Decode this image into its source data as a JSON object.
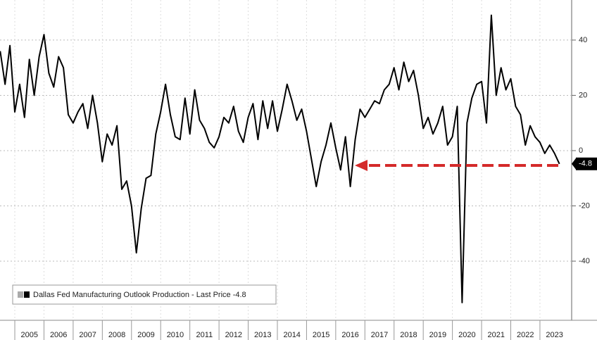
{
  "chart_data": {
    "type": "line",
    "categories": [
      null,
      null,
      null,
      "2005",
      null,
      null,
      null,
      null,
      null,
      "2006",
      null,
      null,
      null,
      null,
      null,
      "2007",
      null,
      null,
      null,
      null,
      null,
      "2008",
      null,
      null,
      null,
      null,
      null,
      "2009",
      null,
      null,
      null,
      null,
      null,
      "2010",
      null,
      null,
      null,
      null,
      null,
      "2011",
      null,
      null,
      null,
      null,
      null,
      "2012",
      null,
      null,
      null,
      null,
      null,
      "2013",
      null,
      null,
      null,
      null,
      null,
      "2014",
      null,
      null,
      null,
      null,
      null,
      "2015",
      null,
      null,
      null,
      null,
      null,
      "2016",
      null,
      null,
      null,
      null,
      null,
      "2017",
      null,
      null,
      null,
      null,
      null,
      "2018",
      null,
      null,
      null,
      null,
      null,
      "2019",
      null,
      null,
      null,
      null,
      null,
      "2020",
      null,
      null,
      null,
      null,
      null,
      "2021",
      null,
      null,
      null,
      null,
      null,
      "2022",
      null,
      null,
      null,
      null,
      null,
      "2023",
      null,
      null,
      null,
      null
    ],
    "series": [
      {
        "name": "Dallas Fed Manufacturing Outlook Production - Last Price -4.8",
        "color": "#000000",
        "values": [
          36,
          24,
          38,
          14,
          24,
          12,
          33,
          20,
          34,
          42,
          28,
          23,
          34,
          30,
          13,
          10,
          14,
          17,
          8,
          20,
          10,
          -4,
          6,
          2,
          9,
          -14,
          -11,
          -20,
          -37,
          -21,
          -10,
          -9,
          6,
          14,
          24,
          13,
          5,
          4,
          19,
          6,
          22,
          11,
          8,
          3,
          1,
          5,
          12,
          10,
          16,
          7,
          3,
          12,
          17,
          4,
          18,
          8,
          18,
          7,
          15,
          24,
          18,
          11,
          15,
          7,
          -3,
          -13,
          -4,
          2,
          10,
          1,
          -7,
          5,
          -13,
          4,
          15,
          12,
          15,
          18,
          17,
          22,
          24,
          30,
          22,
          32,
          25,
          29,
          20,
          8,
          12,
          6,
          10,
          16,
          2,
          5,
          16,
          -55,
          10,
          19,
          24,
          25,
          10,
          49,
          20,
          30,
          22,
          26,
          16,
          13,
          2,
          9,
          5,
          3,
          -1,
          2,
          -1,
          -4.8
        ]
      }
    ],
    "last_value_label": "-4.8",
    "ylim": [
      -61.4,
      54.5
    ],
    "yticks": [
      40,
      20,
      0,
      -20,
      -40
    ],
    "grid": true,
    "legend": "bottom-left"
  }
}
